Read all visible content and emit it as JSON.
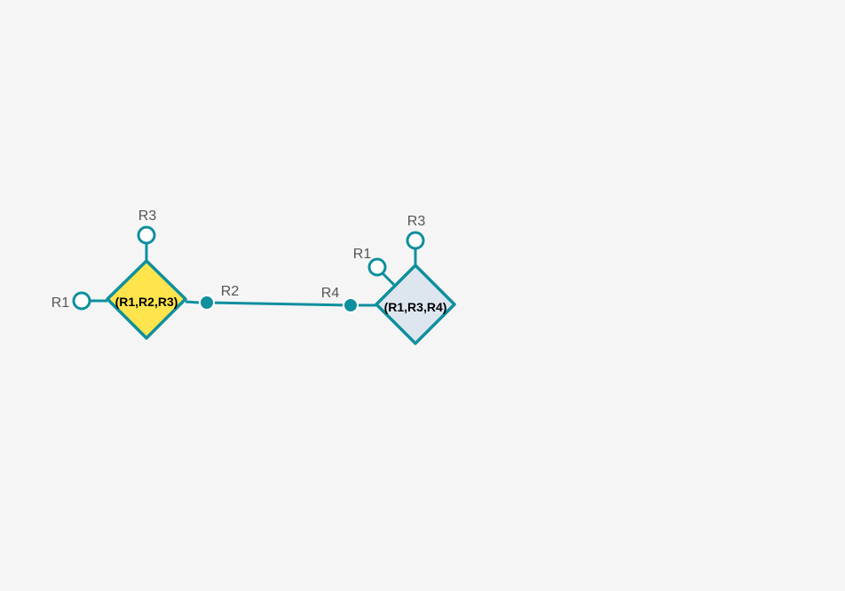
{
  "colors": {
    "background": "#f5f5f5",
    "stroke": "#0e8f9e",
    "node_1_fill": "#ffe44d",
    "node_2_fill": "#dde5ee",
    "open_attachment_fill": "#ffffff",
    "filled_attachment_fill": "#0e8f9e"
  },
  "nodes": [
    {
      "id": "node-1",
      "label": "(R1,R2,R3)",
      "fill": "#ffe44d",
      "attachments": [
        {
          "label": "R1",
          "state": "open"
        },
        {
          "label": "R2",
          "state": "connected"
        },
        {
          "label": "R3",
          "state": "open"
        }
      ]
    },
    {
      "id": "node-2",
      "label": "(R1,R3,R4)",
      "fill": "#dde5ee",
      "attachments": [
        {
          "label": "R1",
          "state": "open"
        },
        {
          "label": "R3",
          "state": "open"
        },
        {
          "label": "R4",
          "state": "connected"
        }
      ]
    }
  ],
  "edges": [
    {
      "from": "node-1",
      "from_attachment": "R2",
      "to": "node-2",
      "to_attachment": "R4"
    }
  ]
}
